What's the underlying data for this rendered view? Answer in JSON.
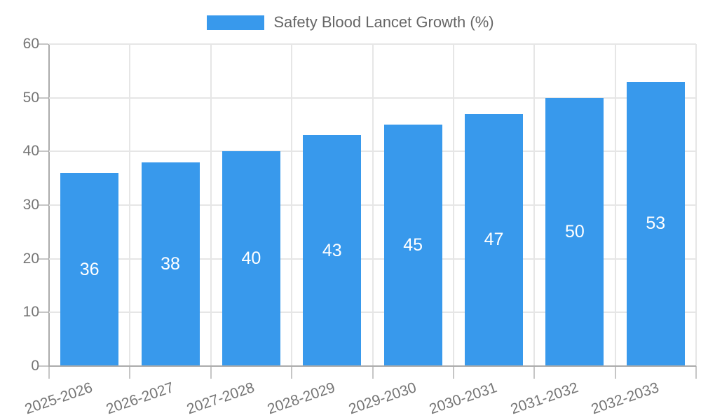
{
  "legend": {
    "label": "Safety Blood Lancet Growth (%)"
  },
  "colors": {
    "bar": "#3899EC",
    "grid": "#e6e6e6",
    "axis": "#ababab",
    "tick": "#c6c6c6",
    "axis_label": "#757575",
    "legend_text": "#666666",
    "value_label": "#ffffff",
    "background": "#ffffff"
  },
  "chart_data": {
    "type": "bar",
    "title": "Safety Blood Lancet Growth (%)",
    "categories": [
      "2025-2026",
      "2026-2027",
      "2027-2028",
      "2028-2029",
      "2029-2030",
      "2030-2031",
      "2031-2032",
      "2032-2033"
    ],
    "values": [
      36,
      38,
      40,
      43,
      45,
      47,
      50,
      53
    ],
    "series": [
      {
        "name": "Safety Blood Lancet Growth (%)",
        "values": [
          36,
          38,
          40,
          43,
          45,
          47,
          50,
          53
        ]
      }
    ],
    "xlabel": "",
    "ylabel": "",
    "ylim": [
      0,
      60
    ],
    "yticks": [
      0,
      10,
      20,
      30,
      40,
      50,
      60
    ],
    "grid": true,
    "legend_position": "top-center",
    "value_label_position": "inside-center",
    "x_tick_rotation_deg": -19
  }
}
